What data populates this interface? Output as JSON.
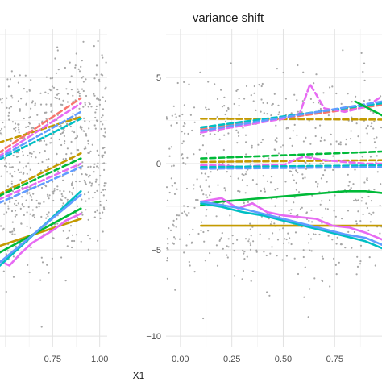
{
  "chart_data": [
    {
      "type": "scatter",
      "panel": "left",
      "title": "",
      "xlabel": "",
      "ylabel": "",
      "x_ticks": [
        "0.75",
        "1.00"
      ],
      "xlim": [
        0.47,
        1.04
      ],
      "ylim": [
        -10.6,
        7.8
      ],
      "grid": true,
      "points_color": "#a6a6a6",
      "series": [
        {
          "color": "#C49A00",
          "dash": true,
          "x": [
            0.46,
            0.9
          ],
          "y": [
            1.2,
            2.7
          ]
        },
        {
          "color": "#F8766D",
          "dash": true,
          "x": [
            0.46,
            0.9
          ],
          "y": [
            0.6,
            3.8
          ]
        },
        {
          "color": "#E76BF3",
          "dash": true,
          "x": [
            0.46,
            0.9
          ],
          "y": [
            0.4,
            3.5
          ]
        },
        {
          "color": "#00BFC4",
          "dash": true,
          "x": [
            0.46,
            0.9
          ],
          "y": [
            0.2,
            2.6
          ]
        },
        {
          "color": "#619CFF",
          "dash": true,
          "x": [
            0.46,
            0.9
          ],
          "y": [
            0.3,
            3.0
          ]
        },
        {
          "color": "#C49A00",
          "dash": true,
          "x": [
            0.46,
            0.9
          ],
          "y": [
            -1.8,
            0.6
          ]
        },
        {
          "color": "#00BA38",
          "dash": true,
          "x": [
            0.46,
            0.9
          ],
          "y": [
            -1.9,
            0.3
          ]
        },
        {
          "color": "#E76BF3",
          "dash": true,
          "x": [
            0.46,
            0.9
          ],
          "y": [
            -2.1,
            0.0
          ]
        },
        {
          "color": "#619CFF",
          "dash": true,
          "x": [
            0.46,
            0.9
          ],
          "y": [
            -2.3,
            -0.2
          ]
        },
        {
          "color": "#C49A00",
          "dash": false,
          "x": [
            0.46,
            0.9
          ],
          "y": [
            -4.8,
            -3.2
          ]
        },
        {
          "color": "#00BA38",
          "dash": false,
          "x": [
            0.46,
            0.9
          ],
          "y": [
            -5.2,
            -2.6
          ]
        },
        {
          "color": "#E76BF3",
          "dash": false,
          "x": [
            0.46,
            0.52,
            0.58,
            0.64,
            0.7,
            0.76,
            0.82,
            0.9
          ],
          "y": [
            -5.6,
            -5.9,
            -5.2,
            -4.6,
            -4.2,
            -3.8,
            -3.3,
            -2.9
          ]
        },
        {
          "color": "#00BFC4",
          "dash": false,
          "x": [
            0.46,
            0.9
          ],
          "y": [
            -6.0,
            -1.6
          ]
        },
        {
          "color": "#619CFF",
          "dash": false,
          "x": [
            0.46,
            0.9
          ],
          "y": [
            -5.8,
            -1.8
          ]
        }
      ]
    },
    {
      "type": "scatter",
      "panel": "right",
      "title": "variance shift",
      "xlabel": "",
      "ylabel": "",
      "x_ticks": [
        "0.00",
        "0.25",
        "0.50",
        "0.75"
      ],
      "y_ticks": [
        "5",
        "0",
        "−5",
        "−10"
      ],
      "xlim": [
        -0.07,
        0.98
      ],
      "ylim": [
        -10.6,
        7.8
      ],
      "grid": true,
      "points_color": "#a6a6a6",
      "series": [
        {
          "color": "#C49A00",
          "dash": true,
          "x": [
            0.1,
            0.98
          ],
          "y": [
            2.6,
            2.55
          ]
        },
        {
          "color": "#F8766D",
          "dash": true,
          "x": [
            0.1,
            0.98
          ],
          "y": [
            2.0,
            3.4
          ]
        },
        {
          "color": "#E76BF3",
          "dash": true,
          "x": [
            0.1,
            0.2,
            0.3,
            0.4,
            0.5,
            0.58,
            0.63,
            0.7,
            0.8,
            0.9,
            0.98
          ],
          "y": [
            1.8,
            2.0,
            2.2,
            2.4,
            2.6,
            2.9,
            4.6,
            3.2,
            3.0,
            3.3,
            3.9
          ]
        },
        {
          "color": "#00BFC4",
          "dash": true,
          "x": [
            0.1,
            0.98
          ],
          "y": [
            2.1,
            3.5
          ]
        },
        {
          "color": "#619CFF",
          "dash": true,
          "x": [
            0.1,
            0.98
          ],
          "y": [
            1.9,
            3.6
          ]
        },
        {
          "color": "#00BA38",
          "dash": false,
          "x": [
            0.85,
            0.98
          ],
          "y": [
            3.6,
            2.8
          ]
        },
        {
          "color": "#00BA38",
          "dash": true,
          "x": [
            0.1,
            0.98
          ],
          "y": [
            0.3,
            0.7
          ]
        },
        {
          "color": "#C49A00",
          "dash": true,
          "x": [
            0.1,
            0.98
          ],
          "y": [
            0.1,
            0.2
          ]
        },
        {
          "color": "#E76BF3",
          "dash": true,
          "x": [
            0.1,
            0.2,
            0.3,
            0.4,
            0.5,
            0.55,
            0.6,
            0.7,
            0.8,
            0.9,
            0.98
          ],
          "y": [
            -0.1,
            -0.1,
            -0.2,
            -0.1,
            -0.1,
            0.2,
            0.4,
            0.2,
            0.1,
            0.0,
            0.0
          ]
        },
        {
          "color": "#00BFC4",
          "dash": true,
          "x": [
            0.1,
            0.98
          ],
          "y": [
            -0.2,
            -0.1
          ]
        },
        {
          "color": "#619CFF",
          "dash": true,
          "x": [
            0.1,
            0.98
          ],
          "y": [
            -0.3,
            -0.2
          ]
        },
        {
          "color": "#00BA38",
          "dash": false,
          "x": [
            0.1,
            0.2,
            0.3,
            0.4,
            0.5,
            0.6,
            0.7,
            0.8,
            0.9,
            0.98
          ],
          "y": [
            -2.4,
            -2.2,
            -2.1,
            -2.0,
            -1.9,
            -1.8,
            -1.7,
            -1.6,
            -1.6,
            -1.7
          ]
        },
        {
          "color": "#C49A00",
          "dash": false,
          "x": [
            0.1,
            0.98
          ],
          "y": [
            -3.6,
            -3.6
          ]
        },
        {
          "color": "#E76BF3",
          "dash": false,
          "x": [
            0.1,
            0.2,
            0.28,
            0.35,
            0.42,
            0.5,
            0.58,
            0.66,
            0.74,
            0.82,
            0.9,
            0.98
          ],
          "y": [
            -2.2,
            -2.0,
            -2.6,
            -2.3,
            -2.8,
            -3.0,
            -3.1,
            -3.2,
            -3.6,
            -3.7,
            -4.0,
            -4.4
          ]
        },
        {
          "color": "#00BFC4",
          "dash": false,
          "x": [
            0.1,
            0.2,
            0.3,
            0.4,
            0.5,
            0.6,
            0.7,
            0.8,
            0.9,
            0.98
          ],
          "y": [
            -2.3,
            -2.5,
            -2.8,
            -3.0,
            -3.3,
            -3.6,
            -3.9,
            -4.2,
            -4.5,
            -4.9
          ]
        },
        {
          "color": "#619CFF",
          "dash": false,
          "x": [
            0.1,
            0.2,
            0.3,
            0.4,
            0.5,
            0.6,
            0.7,
            0.8,
            0.9,
            0.98
          ],
          "y": [
            -2.2,
            -2.4,
            -2.6,
            -2.9,
            -3.2,
            -3.5,
            -3.8,
            -4.1,
            -4.3,
            -4.7
          ]
        }
      ]
    }
  ],
  "shared_xlabel": "X1"
}
